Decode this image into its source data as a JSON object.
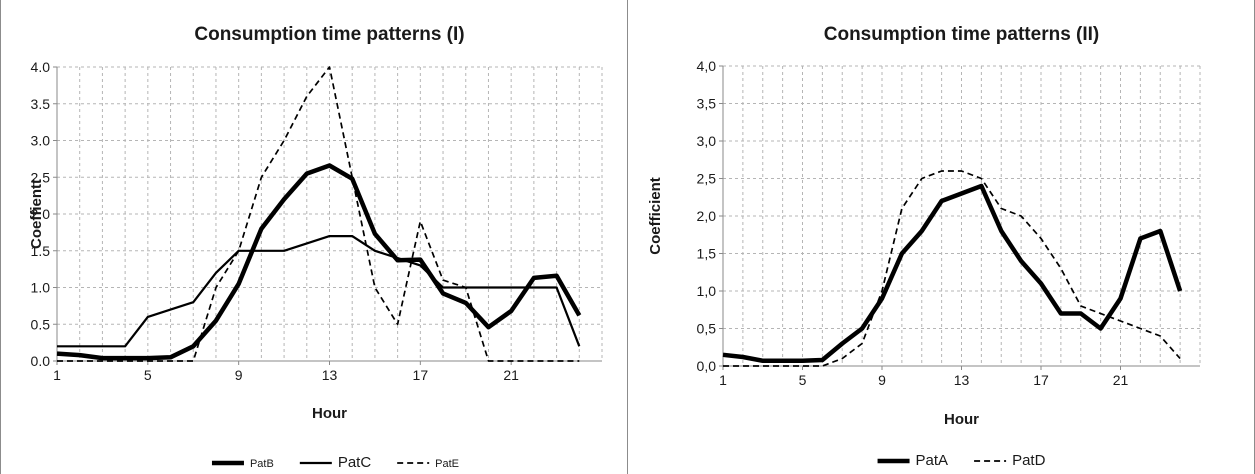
{
  "chart_data": [
    {
      "type": "line",
      "title": "Consumption time patterns (I)",
      "xlabel": "Hour",
      "ylabel": "Coeffientt",
      "xlim": [
        1,
        25
      ],
      "ylim": [
        0,
        4
      ],
      "x_ticks": [
        "1",
        "5",
        "9",
        "13",
        "17",
        "21"
      ],
      "y_ticks": [
        "0.0",
        "0.5",
        "1.0",
        "1.5",
        "2.0",
        "2.5",
        "3.0",
        "3.5",
        "4.0"
      ],
      "grid": true,
      "legend_position": "bottom",
      "x": [
        1,
        2,
        3,
        4,
        5,
        6,
        7,
        8,
        9,
        10,
        11,
        12,
        13,
        14,
        15,
        16,
        17,
        18,
        19,
        20,
        21,
        22,
        23,
        24,
        25
      ],
      "series": [
        {
          "name": "PatB",
          "style": "bold",
          "values": [
            0.1,
            0.08,
            0.04,
            0.04,
            0.04,
            0.05,
            0.2,
            0.55,
            1.05,
            1.8,
            2.2,
            2.55,
            2.66,
            2.48,
            1.73,
            1.37,
            1.38,
            0.92,
            0.79,
            0.46,
            0.68,
            1.13,
            1.16,
            0.62,
            null
          ]
        },
        {
          "name": "PatC",
          "style": "solid",
          "values": [
            0.2,
            0.2,
            0.2,
            0.2,
            0.6,
            0.7,
            0.8,
            1.2,
            1.5,
            1.5,
            1.5,
            1.6,
            1.7,
            1.7,
            1.5,
            1.4,
            1.3,
            1.0,
            1.0,
            1.0,
            1.0,
            1.0,
            1.0,
            0.2,
            null
          ]
        },
        {
          "name": "PatE",
          "style": "dashed",
          "values": [
            0,
            0,
            0,
            0,
            0,
            0,
            0,
            1.0,
            1.5,
            2.5,
            3.0,
            3.6,
            4.0,
            2.5,
            1.0,
            0.5,
            1.9,
            1.1,
            1.0,
            0,
            0,
            0,
            0,
            0,
            null
          ]
        }
      ]
    },
    {
      "type": "line",
      "title": "Consumption time patterns (II)",
      "xlabel": "Hour",
      "ylabel": "Coefficient",
      "xlim": [
        1,
        25
      ],
      "ylim": [
        0,
        4
      ],
      "x_ticks": [
        "1",
        "5",
        "9",
        "13",
        "17",
        "21"
      ],
      "y_ticks": [
        "0,0",
        "0,5",
        "1,0",
        "1,5",
        "2,0",
        "2,5",
        "3,0",
        "3,5",
        "4,0"
      ],
      "grid": true,
      "legend_position": "bottom",
      "x": [
        1,
        2,
        3,
        4,
        5,
        6,
        7,
        8,
        9,
        10,
        11,
        12,
        13,
        14,
        15,
        16,
        17,
        18,
        19,
        20,
        21,
        22,
        23,
        24,
        25
      ],
      "series": [
        {
          "name": "PatA",
          "style": "bold",
          "values": [
            0.15,
            0.12,
            0.07,
            0.07,
            0.07,
            0.08,
            0.3,
            0.5,
            0.9,
            1.5,
            1.8,
            2.2,
            2.3,
            2.4,
            1.8,
            1.4,
            1.1,
            0.7,
            0.7,
            0.5,
            0.9,
            1.7,
            1.8,
            1.0,
            null
          ]
        },
        {
          "name": "PatD",
          "style": "dashed",
          "values": [
            0,
            0,
            0,
            0,
            0,
            0,
            0.1,
            0.3,
            1.0,
            2.1,
            2.5,
            2.6,
            2.6,
            2.5,
            2.1,
            2.0,
            1.7,
            1.3,
            0.8,
            0.7,
            0.6,
            0.5,
            0.4,
            0.1,
            null
          ]
        }
      ]
    }
  ]
}
